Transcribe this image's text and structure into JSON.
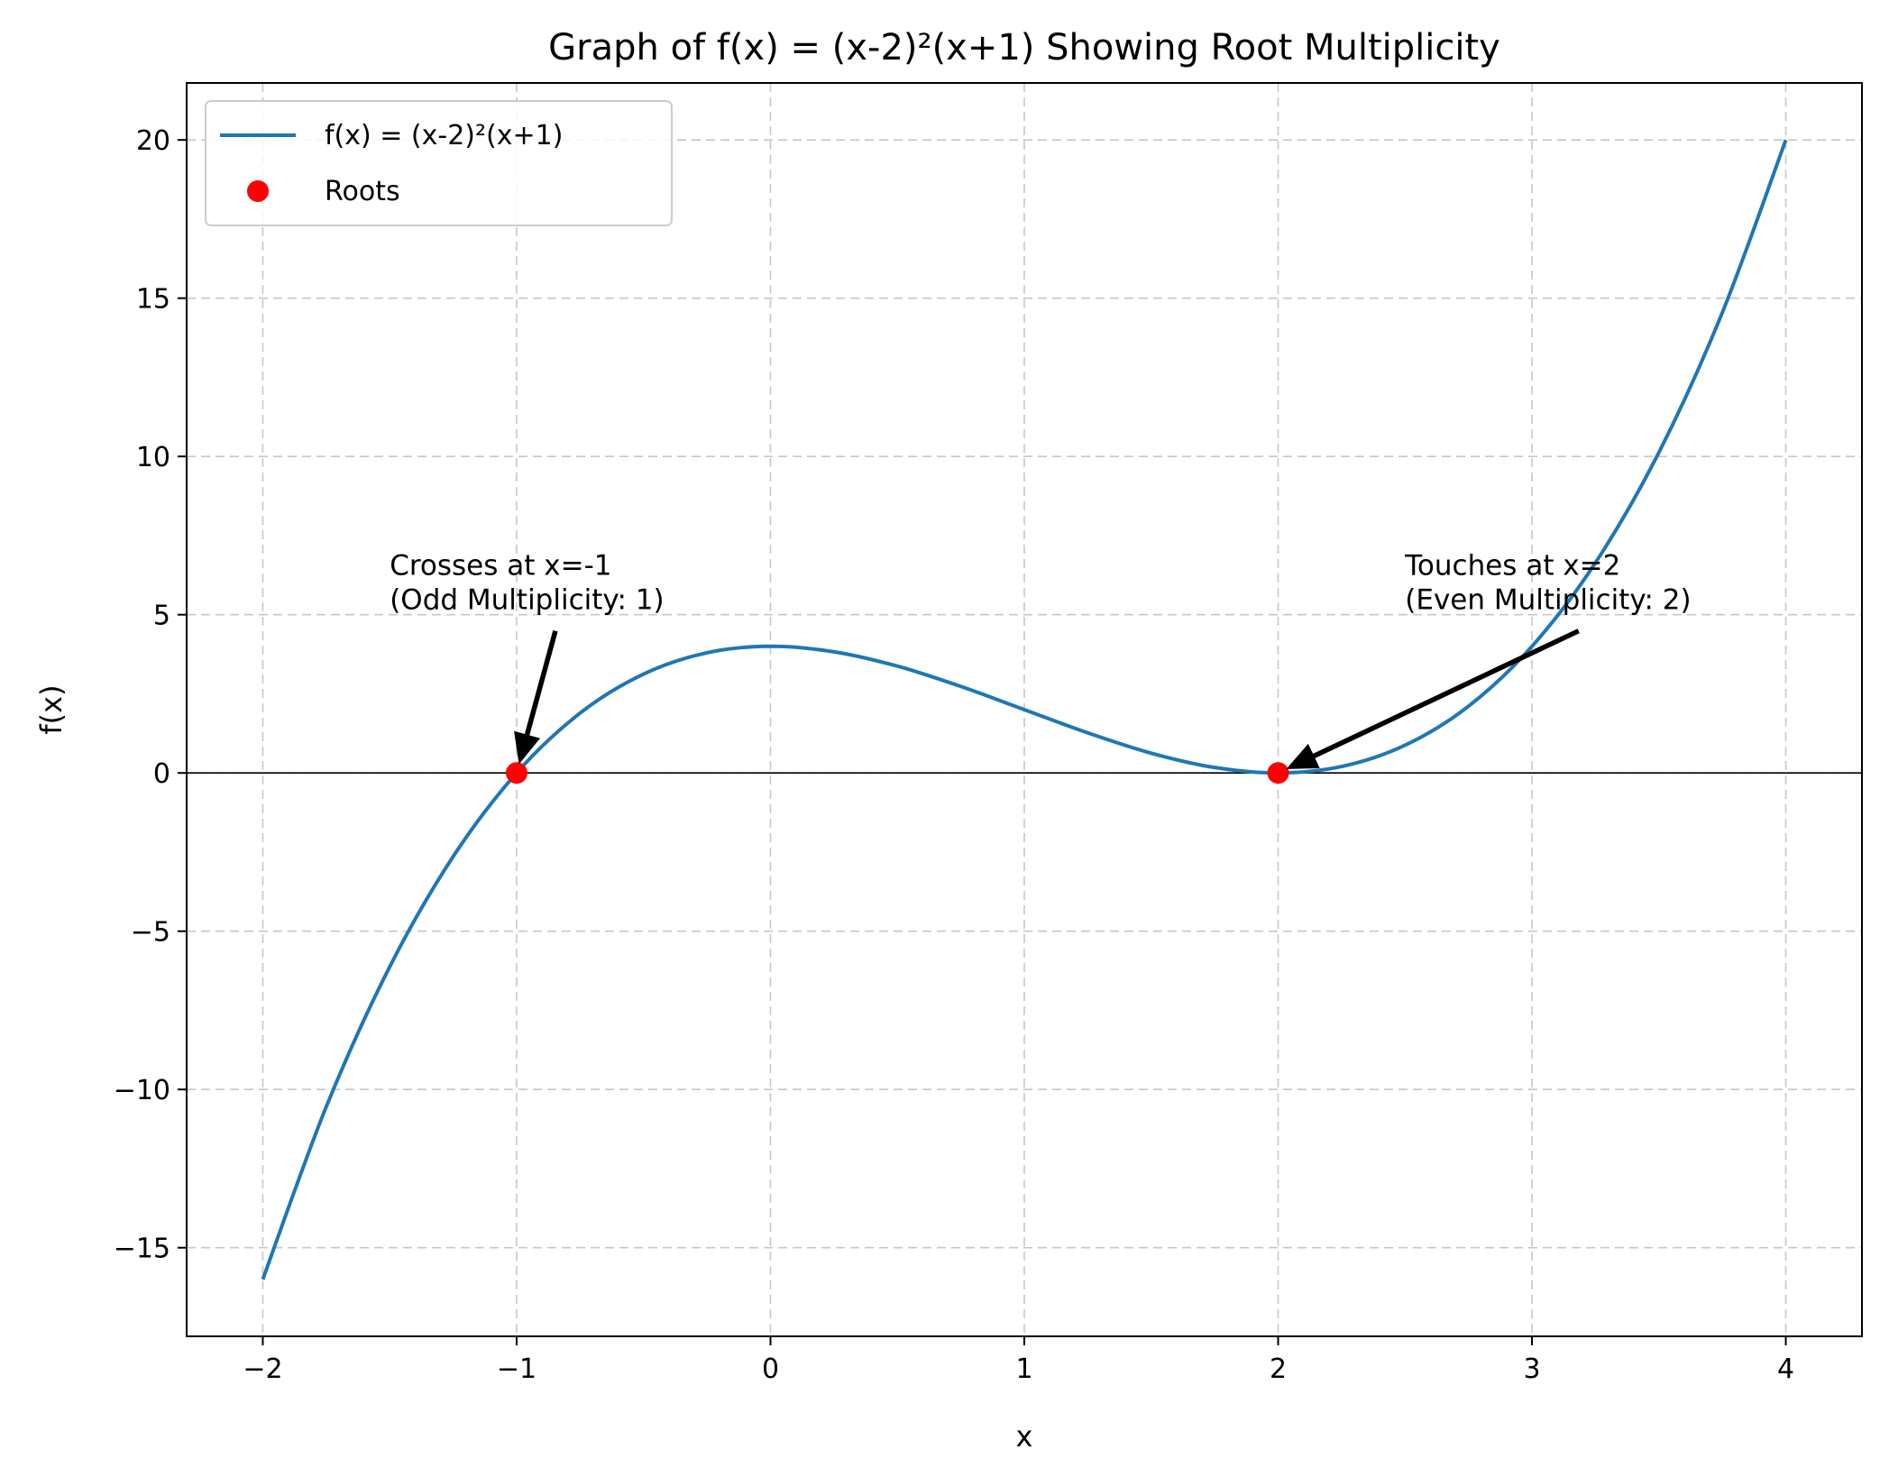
{
  "chart_data": {
    "type": "line",
    "title": "Graph of f(x) = (x-2)²(x+1) Showing Root Multiplicity",
    "xlabel": "x",
    "ylabel": "f(x)",
    "xlim": [
      -2.3,
      4.3
    ],
    "ylim": [
      -17.8,
      21.8
    ],
    "xticks": [
      -2,
      -1,
      0,
      1,
      2,
      3,
      4
    ],
    "yticks": [
      -15,
      -10,
      -5,
      0,
      5,
      10,
      15,
      20
    ],
    "grid": true,
    "legend_position": "top-left",
    "colors": {
      "curve": "#1f77b4",
      "roots": "#ff0000",
      "arrow": "#000000",
      "zero_line": "#000000"
    },
    "series": [
      {
        "name": "f(x) = (x-2)²(x+1)",
        "kind": "line",
        "x": [
          -2.0,
          -1.75,
          -1.5,
          -1.25,
          -1.0,
          -0.75,
          -0.5,
          -0.25,
          0.0,
          0.25,
          0.5,
          0.75,
          1.0,
          1.25,
          1.5,
          1.75,
          2.0,
          2.25,
          2.5,
          2.75,
          3.0,
          3.25,
          3.5,
          3.75,
          4.0
        ],
        "y": [
          -16.0,
          -10.547,
          -6.125,
          -2.641,
          0.0,
          1.891,
          3.125,
          3.797,
          4.0,
          3.828,
          3.375,
          2.734,
          2.0,
          1.266,
          0.625,
          0.172,
          0.0,
          0.203,
          0.875,
          2.109,
          4.0,
          6.641,
          10.125,
          14.547,
          20.0
        ]
      },
      {
        "name": "Roots",
        "kind": "scatter",
        "x": [
          -1,
          2
        ],
        "y": [
          0,
          0
        ]
      }
    ],
    "annotations": [
      {
        "lines": [
          "Crosses at x=-1",
          "(Odd Multiplicity: 1)"
        ],
        "point": [
          -1,
          0
        ],
        "text_at": [
          -1.5,
          5
        ]
      },
      {
        "lines": [
          "Touches at x=2",
          "(Even Multiplicity: 2)"
        ],
        "point": [
          2,
          0
        ],
        "text_at": [
          2.5,
          5
        ]
      }
    ]
  }
}
